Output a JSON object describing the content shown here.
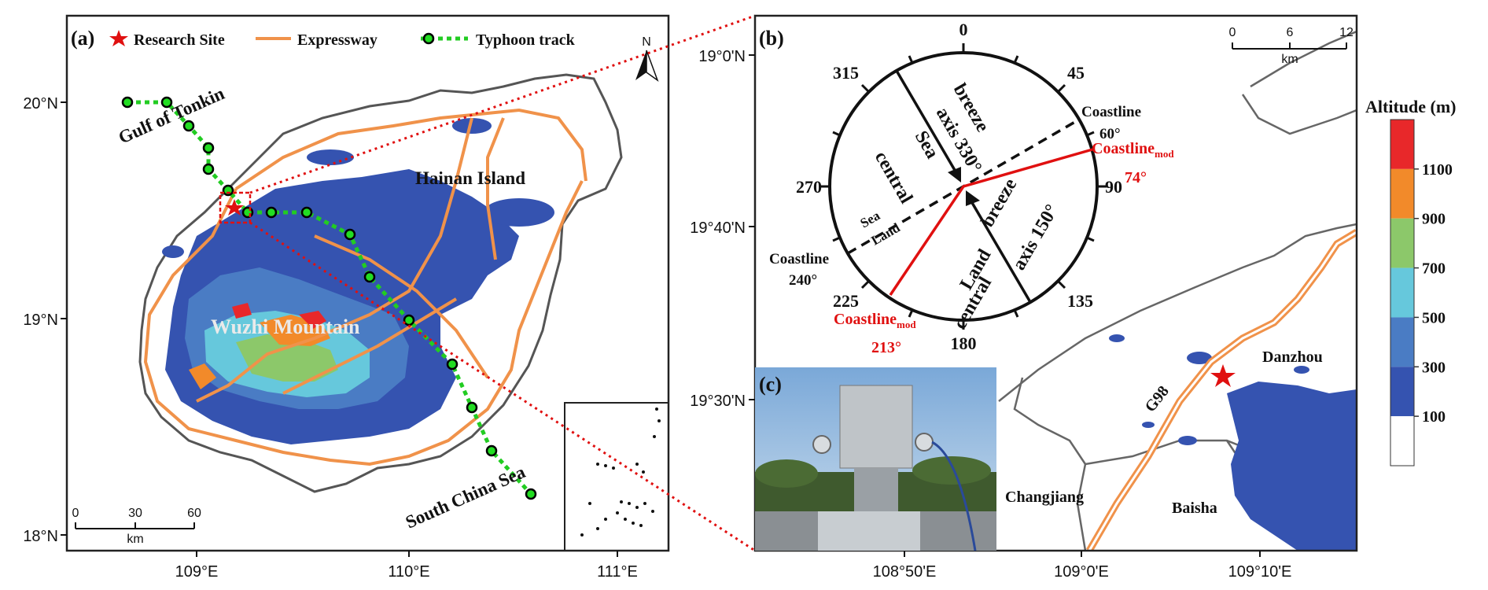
{
  "panel_a": {
    "tag": "(a)",
    "legend": {
      "research_site": "Research Site",
      "expressway": "Expressway",
      "typhoon_track": "Typhoon track"
    },
    "labels": {
      "gulf": "Gulf of Tonkin",
      "island": "Hainan Island",
      "mountain": "Wuzhi Mountain",
      "sea": "South China Sea"
    },
    "north": "N",
    "scale": {
      "ticks": [
        "0",
        "30",
        "60"
      ],
      "unit": "km"
    },
    "lat_ticks": [
      "20°N",
      "19°N",
      "18°N"
    ],
    "lon_ticks": [
      "109°E",
      "110°E",
      "111°E"
    ]
  },
  "panel_b": {
    "tag": "(b)",
    "compass_ticks": [
      "0",
      "45",
      "90",
      "135",
      "180",
      "225",
      "270",
      "315"
    ],
    "coastline_60": {
      "name": "Coastline",
      "angle": "60°"
    },
    "coastline_240": {
      "name": "Coastline",
      "angle": "240°"
    },
    "coastline_mod_74": {
      "name": "Coastline",
      "sub": "mod",
      "angle": "74°"
    },
    "coastline_mod_213": {
      "name": "Coastline",
      "sub": "mod",
      "angle": "213°"
    },
    "sea_breeze": {
      "w1": "Sea",
      "w2": "breeze",
      "w3": "central",
      "w4": "axis 330°"
    },
    "land_breeze": {
      "w1": "Land",
      "w2": "breeze",
      "w3": "central",
      "w4": "axis 150°"
    },
    "sea_small": "Sea",
    "land_small": "Land",
    "scale": {
      "ticks": [
        "0",
        "6",
        "12"
      ],
      "unit": "km"
    },
    "place_names": {
      "danzhou": "Danzhou",
      "changjiang": "Changjiang",
      "baisha": "Baisha",
      "road": "G98"
    },
    "lat_ticks": [
      "19°0'N",
      "19°40'N",
      "19°30'N"
    ],
    "lon_ticks": [
      "108°50'E",
      "109°0'E",
      "109°10'E"
    ]
  },
  "panel_c": {
    "tag": "(c)"
  },
  "colorbar": {
    "title": "Altitude (m)",
    "labels": [
      "1100",
      "900",
      "700",
      "500",
      "300",
      "100"
    ],
    "colors": [
      "#e8282a",
      "#f28a2a",
      "#8cc86a",
      "#66c8dc",
      "#4a7cc4",
      "#3553b0",
      "#ffffff"
    ]
  }
}
